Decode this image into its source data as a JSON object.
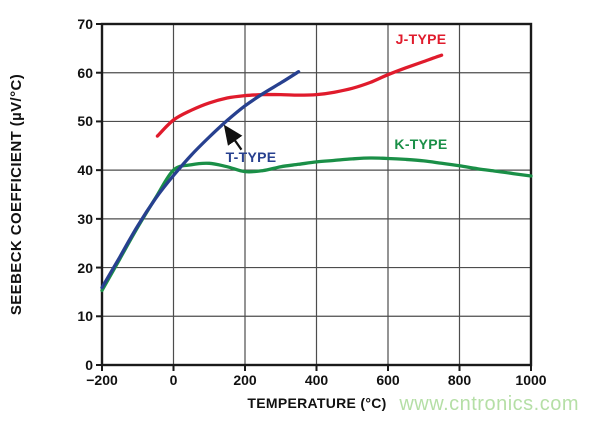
{
  "watermark": "www.cntronics.com",
  "chart_data": {
    "type": "line",
    "xlabel": "TEMPERATURE (°C)",
    "ylabel": "SEEBECK COEFFICIENT (µV/°C)",
    "xlim": [
      -200,
      1000
    ],
    "ylim": [
      0,
      70
    ],
    "x_ticks": [
      -200,
      0,
      200,
      400,
      600,
      800,
      1000
    ],
    "y_ticks": [
      0,
      10,
      20,
      30,
      40,
      50,
      60,
      70
    ],
    "grid": true,
    "legend_position": "inline-labels",
    "colors": {
      "grid": "#4d4d4d",
      "frame": "#1a1a1a",
      "axis_text": "#111111",
      "watermark": "#b5dfa6",
      "annotation_arrow": "#111111"
    },
    "series": [
      {
        "name": "J-TYPE",
        "color": "#e01b2c",
        "points": [
          [
            -45,
            47.0
          ],
          [
            0,
            50.3
          ],
          [
            50,
            52.3
          ],
          [
            100,
            53.8
          ],
          [
            150,
            54.8
          ],
          [
            200,
            55.3
          ],
          [
            250,
            55.5
          ],
          [
            300,
            55.5
          ],
          [
            350,
            55.4
          ],
          [
            400,
            55.5
          ],
          [
            450,
            56.0
          ],
          [
            500,
            56.8
          ],
          [
            550,
            58.0
          ],
          [
            600,
            59.6
          ],
          [
            650,
            61.0
          ],
          [
            700,
            62.3
          ],
          [
            750,
            63.6
          ]
        ]
      },
      {
        "name": "K-TYPE",
        "color": "#1a8f47",
        "points": [
          [
            -200,
            15.3
          ],
          [
            -150,
            21.8
          ],
          [
            -100,
            28.3
          ],
          [
            -50,
            34.3
          ],
          [
            0,
            40.0
          ],
          [
            50,
            41.1
          ],
          [
            100,
            41.4
          ],
          [
            150,
            40.7
          ],
          [
            200,
            39.7
          ],
          [
            250,
            39.9
          ],
          [
            300,
            40.7
          ],
          [
            350,
            41.2
          ],
          [
            400,
            41.7
          ],
          [
            450,
            42.0
          ],
          [
            500,
            42.3
          ],
          [
            550,
            42.5
          ],
          [
            600,
            42.4
          ],
          [
            650,
            42.2
          ],
          [
            700,
            41.9
          ],
          [
            750,
            41.4
          ],
          [
            800,
            40.9
          ],
          [
            850,
            40.3
          ],
          [
            900,
            39.8
          ],
          [
            950,
            39.3
          ],
          [
            1000,
            38.8
          ]
        ]
      },
      {
        "name": "T-TYPE",
        "color": "#27408f",
        "points": [
          [
            -200,
            15.9
          ],
          [
            -150,
            22.2
          ],
          [
            -100,
            28.6
          ],
          [
            -50,
            34.2
          ],
          [
            0,
            38.9
          ],
          [
            50,
            43.1
          ],
          [
            100,
            46.8
          ],
          [
            150,
            50.2
          ],
          [
            200,
            53.2
          ],
          [
            250,
            55.7
          ],
          [
            300,
            57.9
          ],
          [
            350,
            60.2
          ]
        ]
      }
    ],
    "annotation_arrow": {
      "from": [
        190,
        44.2
      ],
      "to": [
        146,
        48.8
      ]
    }
  }
}
